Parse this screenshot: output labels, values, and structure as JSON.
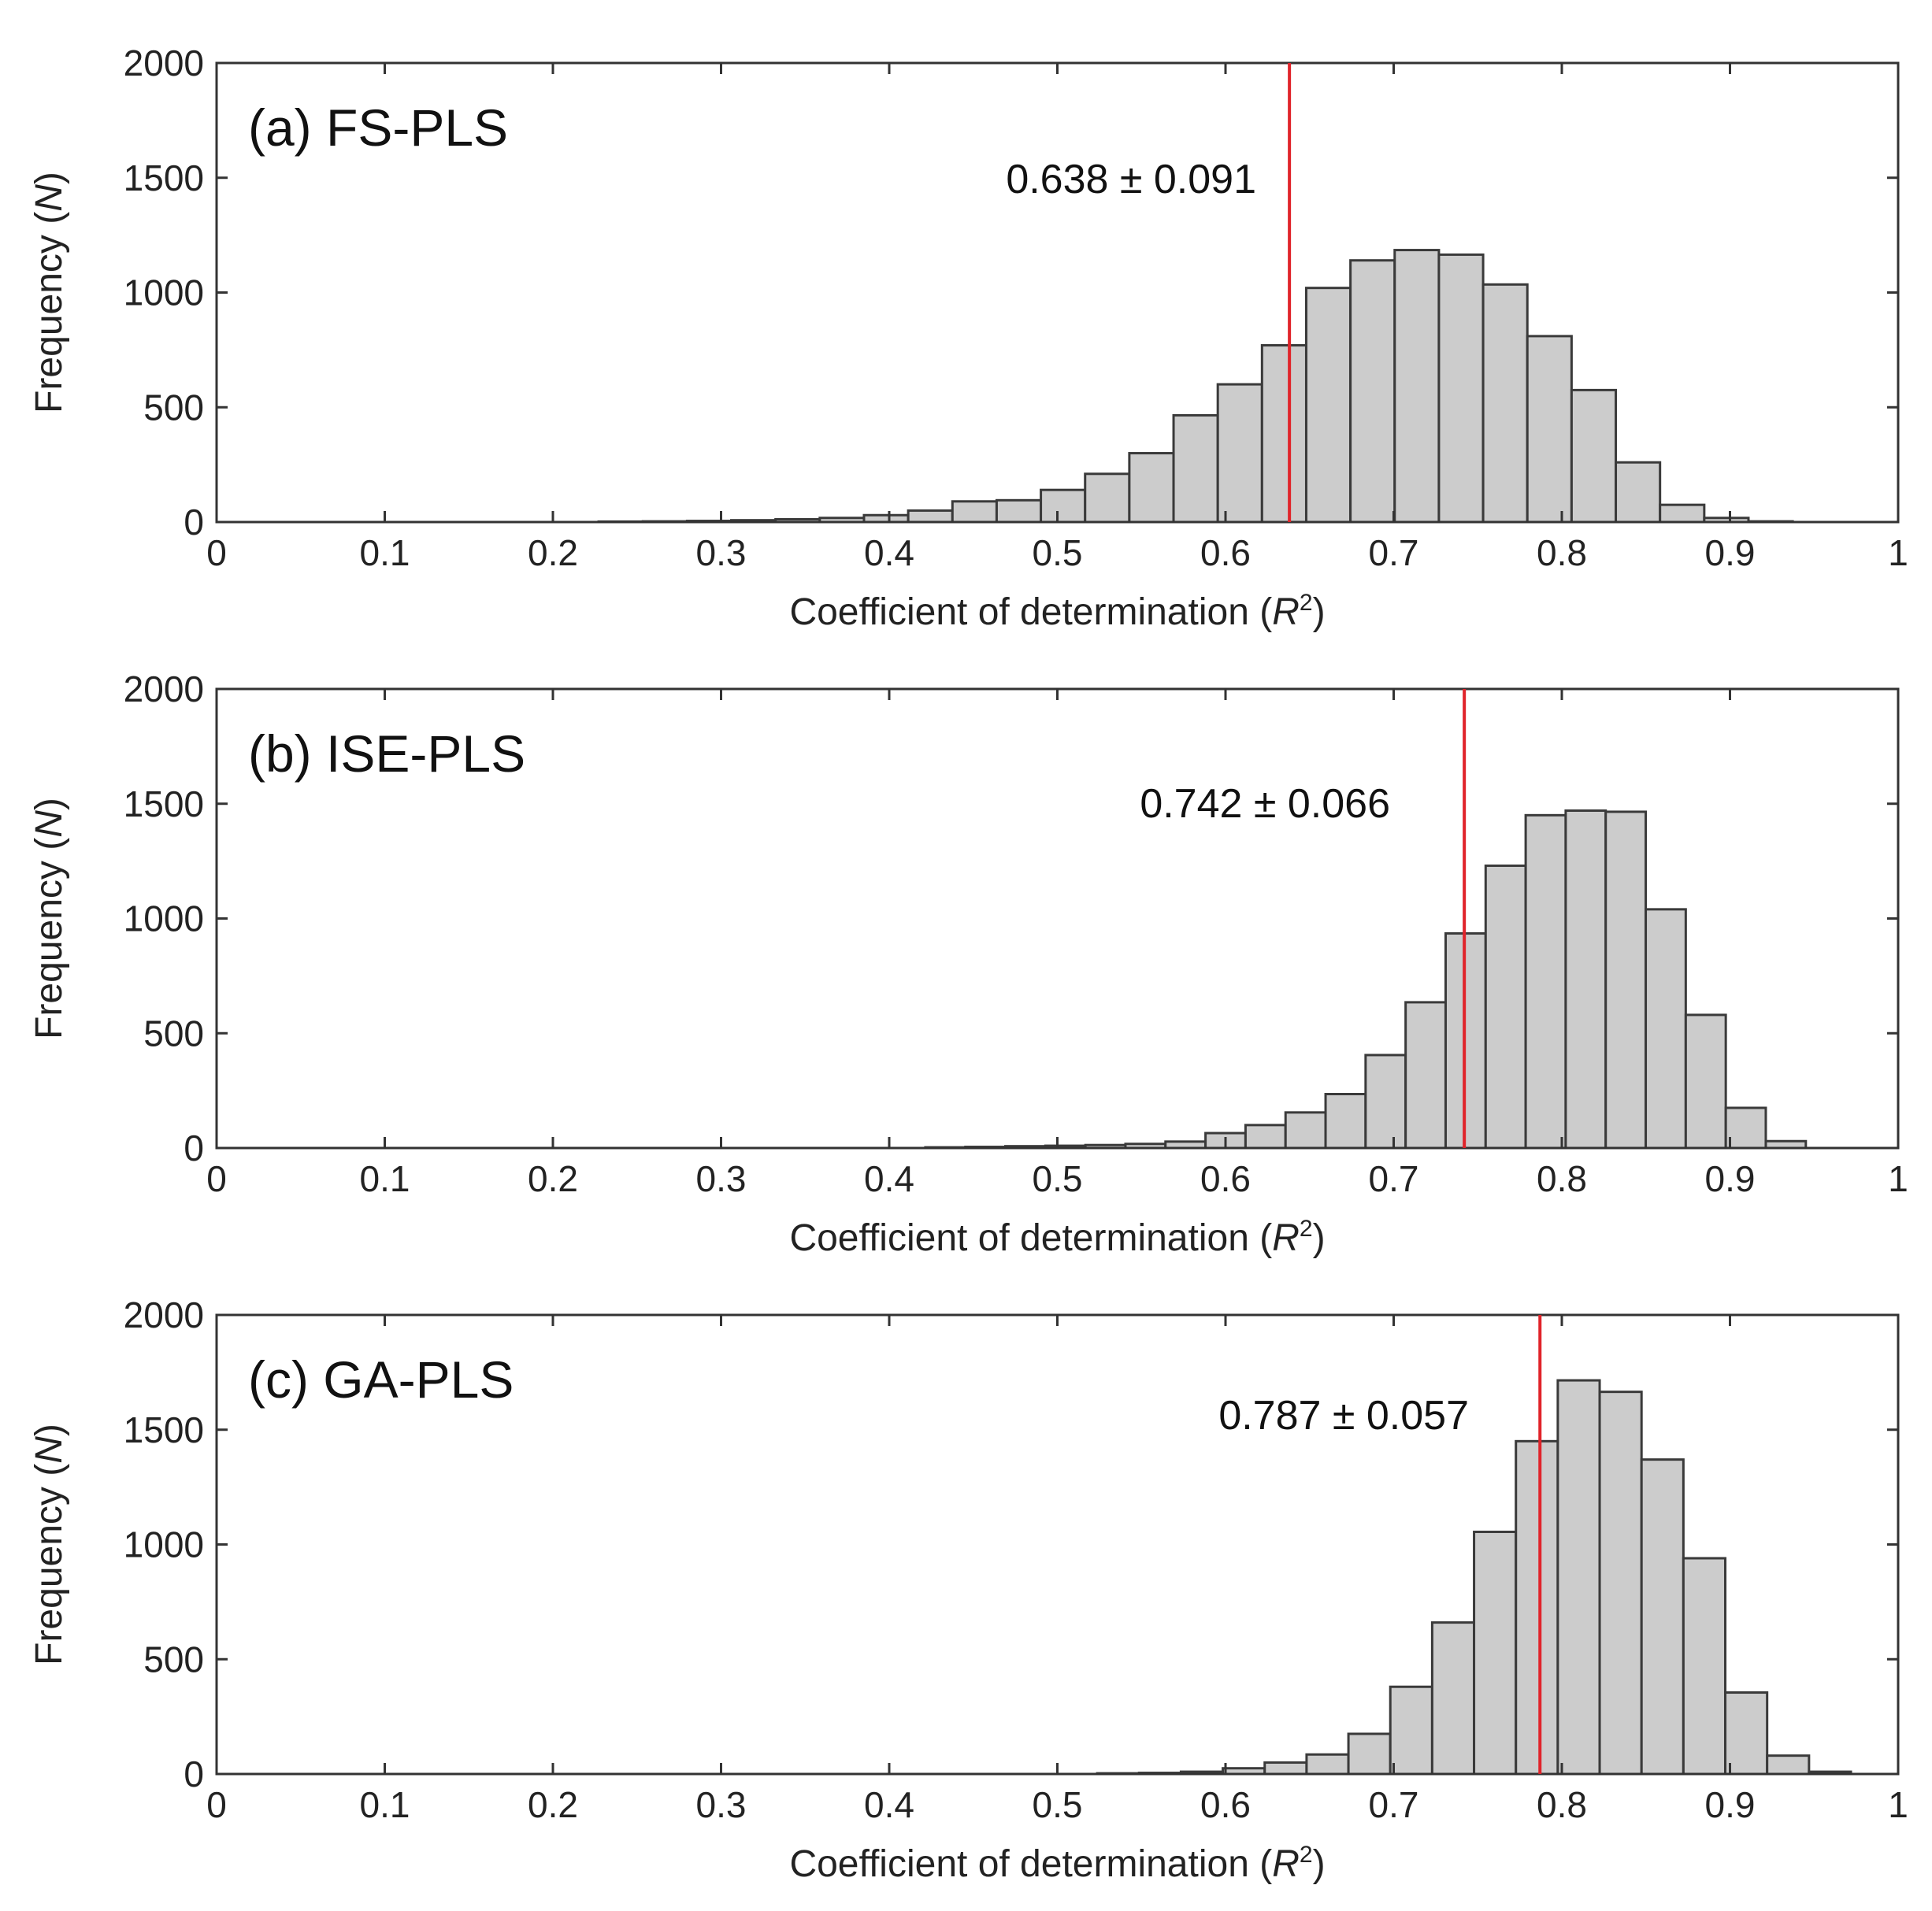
{
  "chart_data": [
    {
      "type": "bar",
      "panel_label": "(a) FS-PLS",
      "annotation": "0.638 ± 0.091",
      "mean": 0.638,
      "xlabel": "Coefficient of determination (",
      "xlabel_var": "R",
      "xlabel_sup": "2",
      "xlabel_end": ")",
      "ylabel": "Frequency (",
      "ylabel_var": "N",
      "ylabel_end": ")",
      "xlim": [
        0,
        1
      ],
      "ylim": [
        0,
        2000
      ],
      "xticks": [
        "0",
        "0.1",
        "0.2",
        "0.3",
        "0.4",
        "0.5",
        "0.6",
        "0.7",
        "0.8",
        "0.9",
        "1"
      ],
      "yticks": [
        "0",
        "500",
        "1000",
        "1500",
        "2000"
      ],
      "bin_width": 0.0263,
      "bin_start": 0.2272,
      "values": [
        2,
        3,
        5,
        8,
        12,
        18,
        30,
        50,
        90,
        95,
        140,
        210,
        300,
        465,
        600,
        770,
        1020,
        1140,
        1185,
        1165,
        1035,
        810,
        575,
        260,
        75,
        18,
        3
      ]
    },
    {
      "type": "bar",
      "panel_label": "(b) ISE-PLS",
      "annotation": "0.742 ± 0.066",
      "mean": 0.742,
      "xlabel": "Coefficient of determination (",
      "xlabel_var": "R",
      "xlabel_sup": "2",
      "xlabel_end": ")",
      "ylabel": "Frequency (",
      "ylabel_var": "N",
      "ylabel_end": ")",
      "xlim": [
        0,
        1
      ],
      "ylim": [
        0,
        2000
      ],
      "xticks": [
        "0",
        "0.1",
        "0.2",
        "0.3",
        "0.4",
        "0.5",
        "0.6",
        "0.7",
        "0.8",
        "0.9",
        "1"
      ],
      "yticks": [
        "0",
        "500",
        "1000",
        "1500",
        "2000"
      ],
      "bin_width": 0.0238,
      "bin_start": 0.4215,
      "values": [
        3,
        5,
        8,
        10,
        13,
        18,
        28,
        65,
        100,
        155,
        235,
        405,
        635,
        935,
        1230,
        1450,
        1470,
        1465,
        1040,
        580,
        175,
        30
      ]
    },
    {
      "type": "bar",
      "panel_label": "(c) GA-PLS",
      "annotation": "0.787 ± 0.057",
      "mean": 0.787,
      "xlabel": "Coefficient of determination (",
      "xlabel_var": "R",
      "xlabel_sup": "2",
      "xlabel_end": ")",
      "ylabel": "Frequency (",
      "ylabel_var": "N",
      "ylabel_end": ")",
      "xlim": [
        0,
        1
      ],
      "ylim": [
        0,
        2000
      ],
      "xticks": [
        "0",
        "0.1",
        "0.2",
        "0.3",
        "0.4",
        "0.5",
        "0.6",
        "0.7",
        "0.8",
        "0.9",
        "1"
      ],
      "yticks": [
        "0",
        "500",
        "1000",
        "1500",
        "2000"
      ],
      "bin_width": 0.0249,
      "bin_start": 0.5237,
      "values": [
        3,
        5,
        10,
        25,
        50,
        85,
        175,
        380,
        660,
        1055,
        1450,
        1715,
        1665,
        1370,
        940,
        355,
        80,
        10
      ]
    }
  ]
}
